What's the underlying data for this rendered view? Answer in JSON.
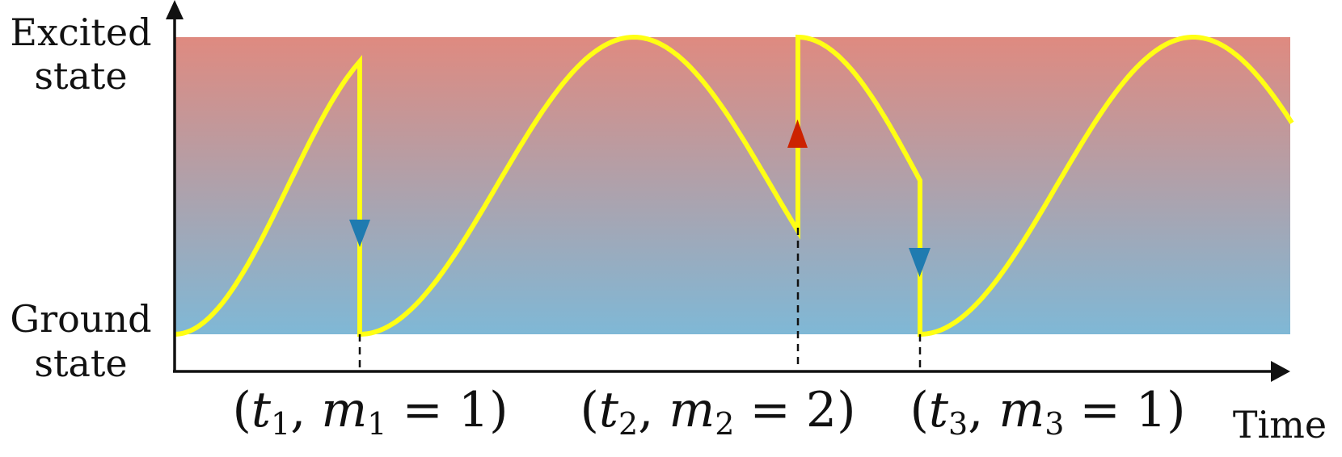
{
  "y_axis": {
    "top_label_line1": "Excited",
    "top_label_line2": "state",
    "bottom_label_line1": "Ground",
    "bottom_label_line2": "state"
  },
  "x_axis": {
    "label": "Time"
  },
  "events": [
    {
      "t": "t",
      "t_index": "1",
      "m": "m",
      "m_index": "1",
      "value": "1",
      "direction": "down",
      "arrow_color": "#1f7bb0"
    },
    {
      "t": "t",
      "t_index": "2",
      "m": "m",
      "m_index": "2",
      "value": "2",
      "direction": "up",
      "arrow_color": "#cc2200"
    },
    {
      "t": "t",
      "t_index": "3",
      "m": "m",
      "m_index": "3",
      "value": "1",
      "direction": "down",
      "arrow_color": "#1f7bb0"
    }
  ],
  "colors": {
    "excited_band": "#df8a80",
    "ground_band": "#7fb8d6",
    "trajectory": "#ffff14",
    "axis": "#111111"
  }
}
